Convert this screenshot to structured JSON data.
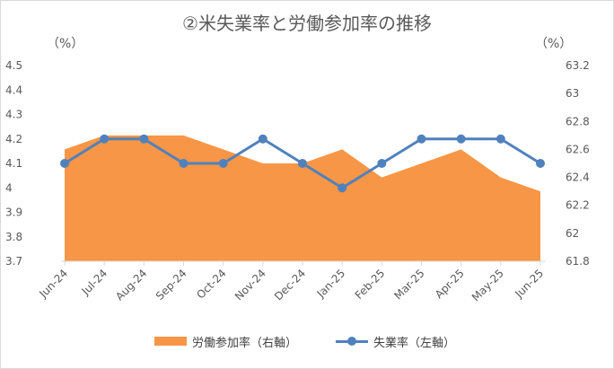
{
  "chart_data": {
    "type": "line",
    "title": "②米失業率と労働参加率の推移",
    "left_unit": "（%）",
    "right_unit": "（%）",
    "categories": [
      "Jun-24",
      "Jul-24",
      "Aug-24",
      "Sep-24",
      "Oct-24",
      "Nov-24",
      "Dec-24",
      "Jan-25",
      "Feb-25",
      "Mar-25",
      "Apr-25",
      "May-25",
      "Jun-25"
    ],
    "series": [
      {
        "name": "労働参加率（右軸）",
        "kind": "area",
        "axis": "right",
        "color": "#f79646",
        "values": [
          62.6,
          62.7,
          62.7,
          62.7,
          62.6,
          62.5,
          62.5,
          62.6,
          62.4,
          62.5,
          62.6,
          62.4,
          62.3
        ]
      },
      {
        "name": "失業率（左軸）",
        "kind": "line",
        "axis": "left",
        "color": "#4f81bd",
        "values": [
          4.1,
          4.2,
          4.2,
          4.1,
          4.1,
          4.2,
          4.1,
          4.0,
          4.1,
          4.2,
          4.2,
          4.2,
          4.1
        ]
      }
    ],
    "left_axis": {
      "ylim": [
        3.7,
        4.5
      ],
      "ticks": [
        "3.7",
        "3.8",
        "3.9",
        "4",
        "4.1",
        "4.2",
        "4.3",
        "4.4",
        "4.5"
      ]
    },
    "right_axis": {
      "ylim": [
        61.8,
        63.2
      ],
      "ticks": [
        "61.8",
        "62",
        "62.2",
        "62.4",
        "62.6",
        "62.8",
        "63",
        "63.2"
      ]
    },
    "grid": false,
    "legend_position": "bottom"
  }
}
